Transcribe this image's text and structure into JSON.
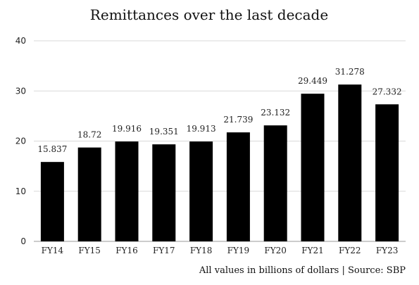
{
  "chart_data": {
    "type": "bar",
    "title": "Remittances over the last decade",
    "categories": [
      "FY14",
      "FY15",
      "FY16",
      "FY17",
      "FY18",
      "FY19",
      "FY20",
      "FY21",
      "FY22",
      "FY23"
    ],
    "values": [
      15.837,
      18.72,
      19.916,
      19.351,
      19.913,
      21.739,
      23.132,
      29.449,
      31.278,
      27.332
    ],
    "data_labels": [
      "15.837",
      "18.72",
      "19.916",
      "19.351",
      "19.913",
      "21.739",
      "23.132",
      "29.449",
      "31.278",
      "27.332"
    ],
    "ylim": [
      0,
      40
    ],
    "yticks": [
      0,
      10,
      20,
      30,
      40
    ],
    "xlabel": "",
    "ylabel": "",
    "grid": true,
    "bar_color": "#000000",
    "grid_color": "#d9d9d9",
    "footnote": "All values in billions of dollars | Source: SBP"
  }
}
